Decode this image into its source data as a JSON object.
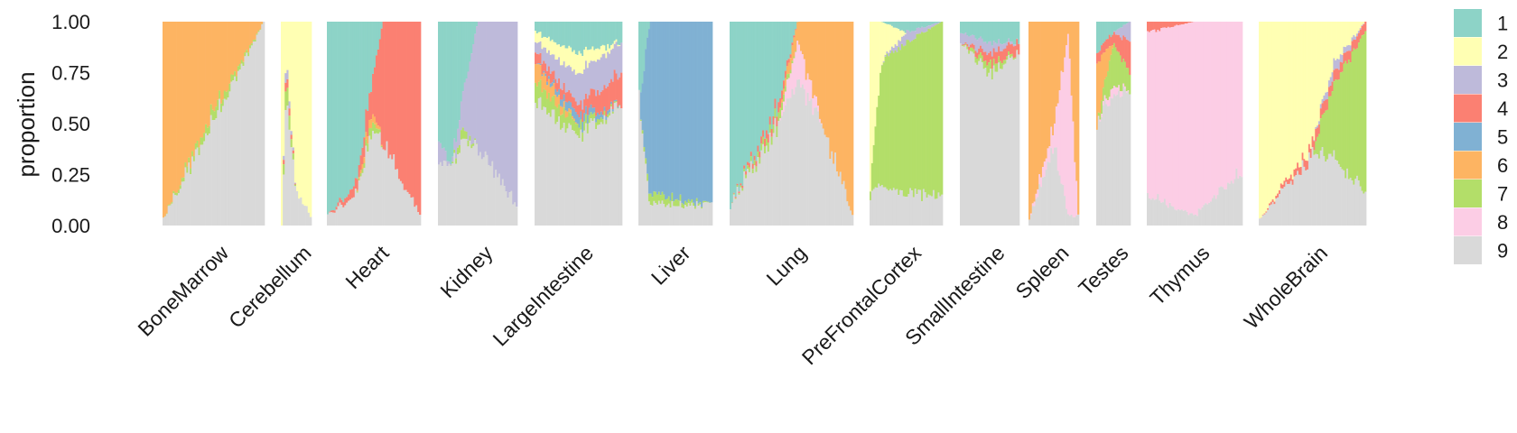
{
  "chart_data": {
    "type": "bar",
    "subtype": "structure-plot (stacked 100% per-sample bars, grouped by tissue)",
    "ylabel": "proportion",
    "ylim": [
      0,
      1
    ],
    "yticks": [
      "0.00",
      "0.25",
      "0.50",
      "0.75",
      "1.00"
    ],
    "grid": false,
    "legend_position": "right",
    "clusters": [
      {
        "name": "1",
        "color": "#8DD3C7"
      },
      {
        "name": "2",
        "color": "#FFFFB3"
      },
      {
        "name": "3",
        "color": "#BEBADA"
      },
      {
        "name": "4",
        "color": "#FB8072"
      },
      {
        "name": "5",
        "color": "#80B1D3"
      },
      {
        "name": "6",
        "color": "#FDB462"
      },
      {
        "name": "7",
        "color": "#B3DE69"
      },
      {
        "name": "8",
        "color": "#FCCDE5"
      },
      {
        "name": "9",
        "color": "#D9D9D9"
      }
    ],
    "categories": [
      "BoneMarrow",
      "Cerebellum",
      "Heart",
      "Kidney",
      "LargeIntestine",
      "Liver",
      "Lung",
      "PreFrontalCortex",
      "SmallIntestine",
      "Spleen",
      "Testes",
      "Thymus",
      "WholeBrain"
    ],
    "groups": [
      {
        "tissue": "BoneMarrow",
        "samples": 60,
        "stops": [
          [
            0,
            {
              "6": 0.96,
              "9": 0.04
            }
          ],
          [
            0.5,
            {
              "6": 0.45,
              "7": 0.05,
              "9": 0.5
            }
          ],
          [
            1,
            {
              "9": 1.0
            }
          ]
        ]
      },
      {
        "tissue": "Cerebellum",
        "samples": 16,
        "stops": [
          [
            0,
            {
              "2": 1.0
            }
          ],
          [
            0.15,
            {
              "2": 0.15,
              "7": 0.1,
              "3": 0.05,
              "4": 0.05,
              "9": 0.65
            }
          ],
          [
            0.5,
            {
              "2": 0.85,
              "9": 0.15
            }
          ],
          [
            1,
            {
              "2": 0.95,
              "9": 0.05
            }
          ]
        ]
      },
      {
        "tissue": "Heart",
        "samples": 54,
        "stops": [
          [
            0,
            {
              "1": 0.95,
              "9": 0.05
            }
          ],
          [
            0.3,
            {
              "1": 0.8,
              "4": 0.05,
              "9": 0.15
            }
          ],
          [
            0.48,
            {
              "1": 0.3,
              "6": 0.05,
              "4": 0.15,
              "7": 0.05,
              "9": 0.45
            }
          ],
          [
            0.6,
            {
              "4": 0.6,
              "9": 0.4
            }
          ],
          [
            1,
            {
              "4": 0.95,
              "9": 0.05
            }
          ]
        ]
      },
      {
        "tissue": "Kidney",
        "samples": 46,
        "stops": [
          [
            0,
            {
              "1": 0.6,
              "3": 0.1,
              "9": 0.3
            }
          ],
          [
            0.15,
            {
              "1": 0.7,
              "9": 0.3
            }
          ],
          [
            0.3,
            {
              "1": 0.4,
              "3": 0.15,
              "7": 0.05,
              "9": 0.4
            }
          ],
          [
            0.5,
            {
              "3": 0.6,
              "9": 0.4
            }
          ],
          [
            1,
            {
              "3": 0.9,
              "9": 0.1
            }
          ]
        ]
      },
      {
        "tissue": "LargeIntestine",
        "samples": 52,
        "stops": [
          [
            0,
            {
              "1": 0.05,
              "2": 0.05,
              "6": 0.1,
              "4": 0.05,
              "7": 0.1,
              "3": 0.05,
              "9": 0.6
            }
          ],
          [
            0.5,
            {
              "1": 0.15,
              "2": 0.1,
              "3": 0.15,
              "7": 0.05,
              "5": 0.05,
              "4": 0.05,
              "9": 0.45
            }
          ],
          [
            1,
            {
              "1": 0.1,
              "4": 0.15,
              "3": 0.15,
              "9": 0.6
            }
          ]
        ]
      },
      {
        "tissue": "Liver",
        "samples": 45,
        "stops": [
          [
            0,
            {
              "1": 0.4,
              "9": 0.6
            }
          ],
          [
            0.15,
            {
              "5": 0.85,
              "7": 0.05,
              "9": 0.1
            }
          ],
          [
            1,
            {
              "5": 0.9,
              "9": 0.1
            }
          ]
        ]
      },
      {
        "tissue": "Lung",
        "samples": 72,
        "stops": [
          [
            0,
            {
              "1": 0.9,
              "9": 0.1
            }
          ],
          [
            0.4,
            {
              "1": 0.4,
              "4": 0.05,
              "7": 0.05,
              "9": 0.5
            }
          ],
          [
            0.55,
            {
              "6": 0.1,
              "8": 0.2,
              "9": 0.7
            }
          ],
          [
            0.75,
            {
              "6": 0.5,
              "9": 0.5
            }
          ],
          [
            1,
            {
              "6": 0.95,
              "9": 0.05
            }
          ]
        ]
      },
      {
        "tissue": "PreFrontalCortex",
        "samples": 44,
        "stops": [
          [
            0,
            {
              "2": 0.8,
              "7": 0.05,
              "9": 0.15
            }
          ],
          [
            0.15,
            {
              "2": 0.2,
              "7": 0.6,
              "9": 0.2
            }
          ],
          [
            0.5,
            {
              "7": 0.75,
              "1": 0.05,
              "3": 0.05,
              "9": 0.15
            }
          ],
          [
            1,
            {
              "7": 0.85,
              "9": 0.15
            }
          ]
        ]
      },
      {
        "tissue": "SmallIntestine",
        "samples": 36,
        "stops": [
          [
            0,
            {
              "1": 0.05,
              "3": 0.05,
              "9": 0.9
            }
          ],
          [
            0.5,
            {
              "1": 0.1,
              "3": 0.05,
              "4": 0.05,
              "7": 0.05,
              "9": 0.75
            }
          ],
          [
            1,
            {
              "1": 0.1,
              "4": 0.05,
              "9": 0.85
            }
          ]
        ]
      },
      {
        "tissue": "Spleen",
        "samples": 30,
        "stops": [
          [
            0,
            {
              "6": 0.97,
              "9": 0.03
            }
          ],
          [
            0.5,
            {
              "6": 0.5,
              "8": 0.1,
              "9": 0.4
            }
          ],
          [
            0.8,
            {
              "6": 0.05,
              "8": 0.9,
              "9": 0.05
            }
          ],
          [
            1,
            {
              "6": 0.95,
              "9": 0.05
            }
          ]
        ]
      },
      {
        "tissue": "Testes",
        "samples": 22,
        "stops": [
          [
            0,
            {
              "1": 0.15,
              "6": 0.3,
              "4": 0.05,
              "9": 0.5
            }
          ],
          [
            0.5,
            {
              "1": 0.05,
              "4": 0.05,
              "7": 0.2,
              "8": 0.05,
              "9": 0.65
            }
          ],
          [
            1,
            {
              "3": 0.1,
              "4": 0.15,
              "7": 0.1,
              "9": 0.65
            }
          ]
        ]
      },
      {
        "tissue": "Thymus",
        "samples": 56,
        "stops": [
          [
            0,
            {
              "4": 0.05,
              "8": 0.8,
              "9": 0.15
            }
          ],
          [
            0.5,
            {
              "8": 0.95,
              "9": 0.05
            }
          ],
          [
            1,
            {
              "8": 0.75,
              "9": 0.25
            }
          ]
        ]
      },
      {
        "tissue": "WholeBrain",
        "samples": 65,
        "stops": [
          [
            0,
            {
              "2": 0.97,
              "9": 0.03
            }
          ],
          [
            0.5,
            {
              "2": 0.6,
              "4": 0.05,
              "9": 0.35
            }
          ],
          [
            0.7,
            {
              "2": 0.2,
              "7": 0.35,
              "4": 0.05,
              "3": 0.05,
              "9": 0.35
            }
          ],
          [
            1,
            {
              "7": 0.8,
              "4": 0.05,
              "9": 0.15
            }
          ]
        ]
      }
    ]
  }
}
